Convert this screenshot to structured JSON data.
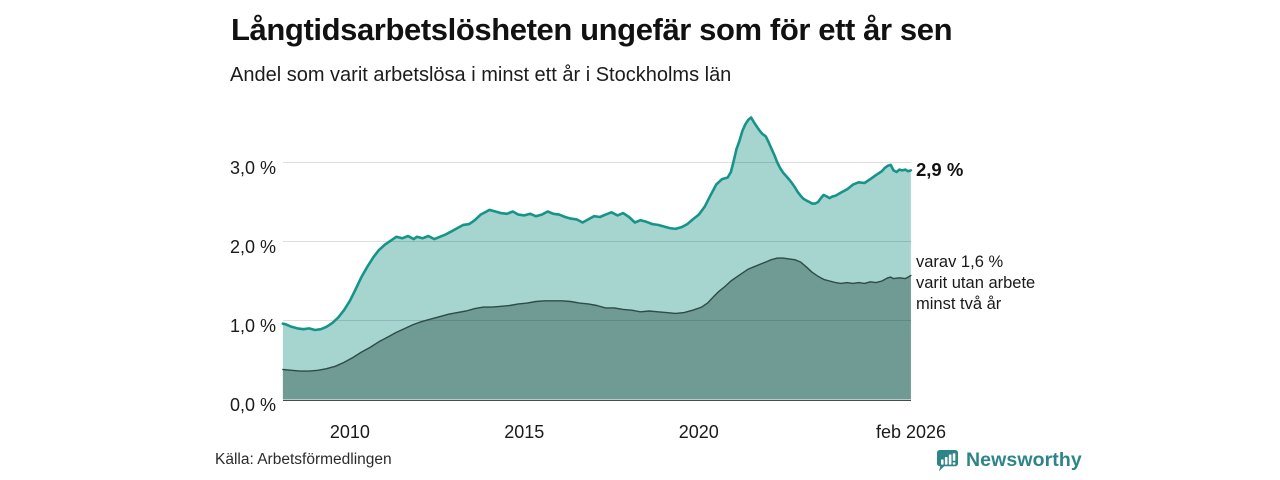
{
  "header": {
    "title": "Långtidsarbetslösheten ungefär som för ett år sen",
    "subtitle": "Andel som varit arbetslösa i minst ett år i Stockholms län"
  },
  "annotations": {
    "total_label": "2,9 %",
    "two_year_line1": "varav 1,6 %",
    "two_year_line2": "varit utan arbete",
    "two_year_line3": "minst två år"
  },
  "footer": {
    "source": "Källa: Arbetsförmedlingen",
    "brand": "Newsworthy"
  },
  "colors": {
    "total_line": "#17948a",
    "total_fill": "#a6d5d0",
    "two_year_line": "#2f4b46",
    "two_year_fill": "#6f9b94",
    "grid": "rgba(0,0,0,0.13)",
    "axis": "#4a4a4a",
    "brand_teal": "#2e8588"
  },
  "chart_data": {
    "type": "area",
    "title": "Långtidsarbetslösheten ungefär som för ett år sen",
    "subtitle": "Andel som varit arbetslösa i minst ett år i Stockholms län",
    "unit": "%",
    "x_range": [
      2008.083,
      2026.083
    ],
    "ylim": [
      0,
      3.8
    ],
    "grid": true,
    "legend": "none (direct labels at line ends)",
    "x_axis": {
      "ticks": [
        {
          "year": 2010,
          "label": "2010"
        },
        {
          "year": 2015,
          "label": "2015"
        },
        {
          "year": 2020,
          "label": "2020"
        },
        {
          "year": 2026.083,
          "label": "feb 2026"
        }
      ]
    },
    "y_axis": {
      "ticks": [
        {
          "value": 0,
          "label": "0,0 %"
        },
        {
          "value": 1,
          "label": "1,0 %"
        },
        {
          "value": 2,
          "label": "2,0 %"
        },
        {
          "value": 3,
          "label": "3,0 %"
        }
      ]
    },
    "series": [
      {
        "name": "Andel arbetslösa minst ett år",
        "end_label": "2,9 %",
        "end_value": 2.9,
        "points": [
          [
            2008.08,
            0.96
          ],
          [
            2008.17,
            0.95
          ],
          [
            2008.33,
            0.92
          ],
          [
            2008.5,
            0.9
          ],
          [
            2008.67,
            0.89
          ],
          [
            2008.83,
            0.9
          ],
          [
            2009.0,
            0.88
          ],
          [
            2009.17,
            0.89
          ],
          [
            2009.33,
            0.92
          ],
          [
            2009.5,
            0.97
          ],
          [
            2009.67,
            1.04
          ],
          [
            2009.83,
            1.13
          ],
          [
            2010.0,
            1.25
          ],
          [
            2010.17,
            1.4
          ],
          [
            2010.33,
            1.55
          ],
          [
            2010.5,
            1.68
          ],
          [
            2010.67,
            1.8
          ],
          [
            2010.83,
            1.89
          ],
          [
            2011.0,
            1.96
          ],
          [
            2011.17,
            2.01
          ],
          [
            2011.33,
            2.06
          ],
          [
            2011.5,
            2.04
          ],
          [
            2011.67,
            2.07
          ],
          [
            2011.83,
            2.03
          ],
          [
            2011.92,
            2.06
          ],
          [
            2012.08,
            2.04
          ],
          [
            2012.25,
            2.07
          ],
          [
            2012.42,
            2.03
          ],
          [
            2012.58,
            2.06
          ],
          [
            2012.75,
            2.09
          ],
          [
            2012.92,
            2.13
          ],
          [
            2013.08,
            2.17
          ],
          [
            2013.25,
            2.21
          ],
          [
            2013.42,
            2.22
          ],
          [
            2013.58,
            2.27
          ],
          [
            2013.75,
            2.34
          ],
          [
            2013.92,
            2.38
          ],
          [
            2014.0,
            2.4
          ],
          [
            2014.17,
            2.38
          ],
          [
            2014.33,
            2.36
          ],
          [
            2014.5,
            2.35
          ],
          [
            2014.67,
            2.38
          ],
          [
            2014.83,
            2.34
          ],
          [
            2015.0,
            2.33
          ],
          [
            2015.17,
            2.35
          ],
          [
            2015.33,
            2.32
          ],
          [
            2015.5,
            2.34
          ],
          [
            2015.67,
            2.38
          ],
          [
            2015.83,
            2.35
          ],
          [
            2016.0,
            2.34
          ],
          [
            2016.17,
            2.31
          ],
          [
            2016.33,
            2.29
          ],
          [
            2016.5,
            2.28
          ],
          [
            2016.67,
            2.24
          ],
          [
            2016.83,
            2.28
          ],
          [
            2017.0,
            2.32
          ],
          [
            2017.17,
            2.31
          ],
          [
            2017.33,
            2.34
          ],
          [
            2017.5,
            2.37
          ],
          [
            2017.67,
            2.33
          ],
          [
            2017.83,
            2.36
          ],
          [
            2018.0,
            2.31
          ],
          [
            2018.17,
            2.24
          ],
          [
            2018.33,
            2.27
          ],
          [
            2018.5,
            2.25
          ],
          [
            2018.67,
            2.22
          ],
          [
            2018.83,
            2.21
          ],
          [
            2019.0,
            2.19
          ],
          [
            2019.17,
            2.17
          ],
          [
            2019.33,
            2.16
          ],
          [
            2019.5,
            2.18
          ],
          [
            2019.67,
            2.22
          ],
          [
            2019.83,
            2.28
          ],
          [
            2020.0,
            2.34
          ],
          [
            2020.17,
            2.44
          ],
          [
            2020.33,
            2.58
          ],
          [
            2020.5,
            2.72
          ],
          [
            2020.67,
            2.79
          ],
          [
            2020.83,
            2.81
          ],
          [
            2020.92,
            2.88
          ],
          [
            2021.0,
            3.02
          ],
          [
            2021.08,
            3.17
          ],
          [
            2021.17,
            3.28
          ],
          [
            2021.25,
            3.4
          ],
          [
            2021.33,
            3.48
          ],
          [
            2021.42,
            3.54
          ],
          [
            2021.5,
            3.57
          ],
          [
            2021.58,
            3.51
          ],
          [
            2021.67,
            3.45
          ],
          [
            2021.75,
            3.4
          ],
          [
            2021.83,
            3.36
          ],
          [
            2021.92,
            3.33
          ],
          [
            2022.0,
            3.26
          ],
          [
            2022.08,
            3.18
          ],
          [
            2022.17,
            3.09
          ],
          [
            2022.25,
            3.0
          ],
          [
            2022.33,
            2.93
          ],
          [
            2022.42,
            2.87
          ],
          [
            2022.5,
            2.83
          ],
          [
            2022.58,
            2.79
          ],
          [
            2022.67,
            2.74
          ],
          [
            2022.75,
            2.69
          ],
          [
            2022.83,
            2.63
          ],
          [
            2022.92,
            2.58
          ],
          [
            2023.0,
            2.54
          ],
          [
            2023.08,
            2.52
          ],
          [
            2023.17,
            2.5
          ],
          [
            2023.25,
            2.48
          ],
          [
            2023.33,
            2.48
          ],
          [
            2023.42,
            2.5
          ],
          [
            2023.5,
            2.55
          ],
          [
            2023.58,
            2.59
          ],
          [
            2023.67,
            2.57
          ],
          [
            2023.75,
            2.55
          ],
          [
            2023.83,
            2.57
          ],
          [
            2023.92,
            2.58
          ],
          [
            2024.0,
            2.6
          ],
          [
            2024.08,
            2.62
          ],
          [
            2024.25,
            2.66
          ],
          [
            2024.42,
            2.72
          ],
          [
            2024.58,
            2.75
          ],
          [
            2024.75,
            2.74
          ],
          [
            2024.92,
            2.79
          ],
          [
            2025.08,
            2.84
          ],
          [
            2025.25,
            2.89
          ],
          [
            2025.33,
            2.93
          ],
          [
            2025.42,
            2.96
          ],
          [
            2025.5,
            2.97
          ],
          [
            2025.58,
            2.9
          ],
          [
            2025.67,
            2.88
          ],
          [
            2025.75,
            2.91
          ],
          [
            2025.83,
            2.9
          ],
          [
            2025.92,
            2.91
          ],
          [
            2026.0,
            2.89
          ],
          [
            2026.08,
            2.9
          ]
        ]
      },
      {
        "name": "varav arbetslösa minst två år",
        "end_label": "varav 1,6 % varit utan arbete minst två år",
        "end_value": 1.6,
        "points": [
          [
            2008.08,
            0.38
          ],
          [
            2008.33,
            0.37
          ],
          [
            2008.58,
            0.36
          ],
          [
            2008.83,
            0.36
          ],
          [
            2009.08,
            0.37
          ],
          [
            2009.33,
            0.39
          ],
          [
            2009.58,
            0.42
          ],
          [
            2009.83,
            0.47
          ],
          [
            2010.08,
            0.53
          ],
          [
            2010.33,
            0.6
          ],
          [
            2010.58,
            0.66
          ],
          [
            2010.83,
            0.73
          ],
          [
            2011.08,
            0.79
          ],
          [
            2011.33,
            0.85
          ],
          [
            2011.58,
            0.9
          ],
          [
            2011.83,
            0.95
          ],
          [
            2012.08,
            0.99
          ],
          [
            2012.33,
            1.02
          ],
          [
            2012.58,
            1.05
          ],
          [
            2012.83,
            1.08
          ],
          [
            2013.08,
            1.1
          ],
          [
            2013.33,
            1.12
          ],
          [
            2013.58,
            1.15
          ],
          [
            2013.83,
            1.17
          ],
          [
            2014.08,
            1.17
          ],
          [
            2014.33,
            1.18
          ],
          [
            2014.58,
            1.19
          ],
          [
            2014.83,
            1.21
          ],
          [
            2015.08,
            1.22
          ],
          [
            2015.33,
            1.24
          ],
          [
            2015.58,
            1.25
          ],
          [
            2015.83,
            1.25
          ],
          [
            2016.08,
            1.25
          ],
          [
            2016.33,
            1.24
          ],
          [
            2016.58,
            1.22
          ],
          [
            2016.83,
            1.21
          ],
          [
            2017.08,
            1.19
          ],
          [
            2017.33,
            1.16
          ],
          [
            2017.58,
            1.16
          ],
          [
            2017.83,
            1.14
          ],
          [
            2018.08,
            1.13
          ],
          [
            2018.33,
            1.11
          ],
          [
            2018.58,
            1.12
          ],
          [
            2018.83,
            1.11
          ],
          [
            2019.08,
            1.1
          ],
          [
            2019.33,
            1.09
          ],
          [
            2019.58,
            1.1
          ],
          [
            2019.83,
            1.13
          ],
          [
            2020.08,
            1.17
          ],
          [
            2020.25,
            1.22
          ],
          [
            2020.42,
            1.3
          ],
          [
            2020.58,
            1.37
          ],
          [
            2020.75,
            1.43
          ],
          [
            2020.92,
            1.5
          ],
          [
            2021.08,
            1.55
          ],
          [
            2021.25,
            1.6
          ],
          [
            2021.42,
            1.65
          ],
          [
            2021.58,
            1.68
          ],
          [
            2021.75,
            1.71
          ],
          [
            2021.92,
            1.74
          ],
          [
            2022.08,
            1.77
          ],
          [
            2022.25,
            1.79
          ],
          [
            2022.42,
            1.79
          ],
          [
            2022.58,
            1.78
          ],
          [
            2022.75,
            1.77
          ],
          [
            2022.92,
            1.74
          ],
          [
            2023.08,
            1.68
          ],
          [
            2023.25,
            1.61
          ],
          [
            2023.42,
            1.56
          ],
          [
            2023.58,
            1.52
          ],
          [
            2023.75,
            1.5
          ],
          [
            2023.92,
            1.48
          ],
          [
            2024.08,
            1.47
          ],
          [
            2024.25,
            1.48
          ],
          [
            2024.42,
            1.47
          ],
          [
            2024.58,
            1.48
          ],
          [
            2024.75,
            1.47
          ],
          [
            2024.92,
            1.49
          ],
          [
            2025.08,
            1.48
          ],
          [
            2025.25,
            1.5
          ],
          [
            2025.42,
            1.54
          ],
          [
            2025.5,
            1.55
          ],
          [
            2025.58,
            1.53
          ],
          [
            2025.75,
            1.54
          ],
          [
            2025.92,
            1.53
          ],
          [
            2026.08,
            1.57
          ]
        ]
      }
    ]
  }
}
